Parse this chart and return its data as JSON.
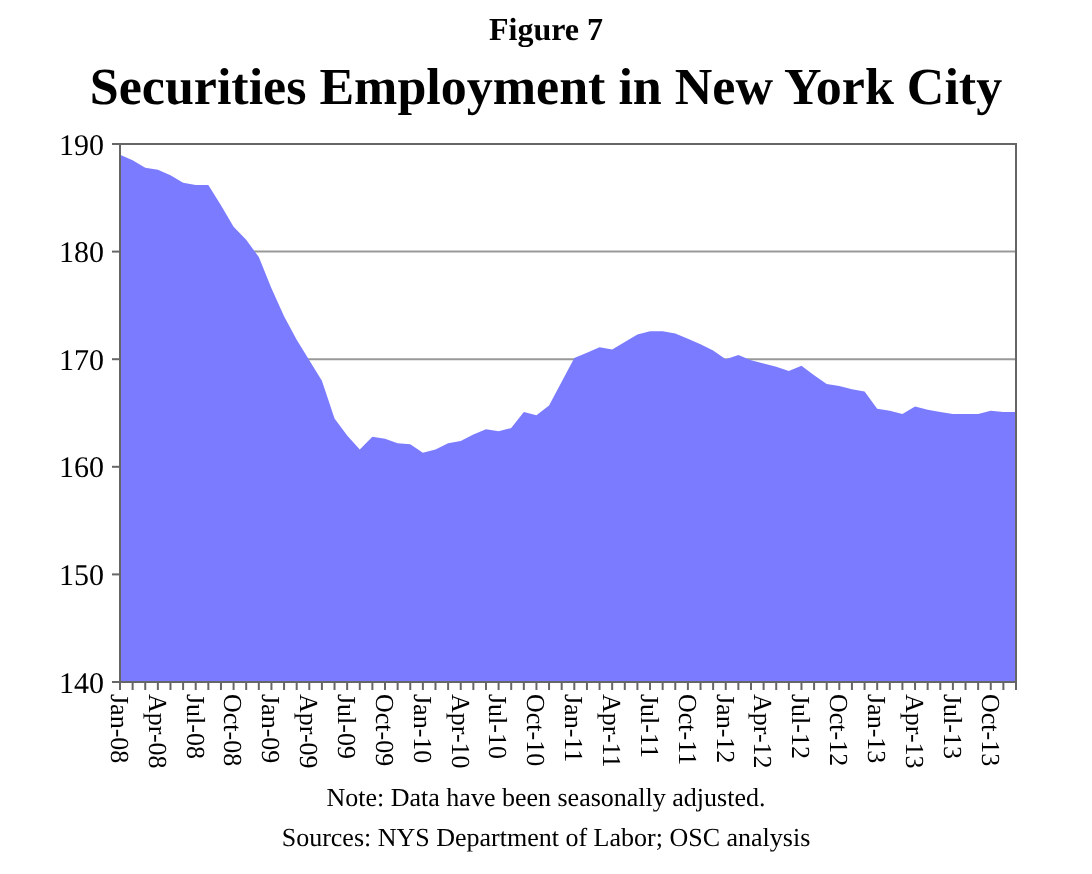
{
  "chart_data": {
    "type": "area",
    "title": "Figure 7",
    "subtitle": "Securities Employment in New York City",
    "categories": [
      "Jan-08",
      null,
      null,
      "Apr-08",
      null,
      null,
      "Jul-08",
      null,
      null,
      "Oct-08",
      null,
      null,
      "Jan-09",
      null,
      null,
      "Apr-09",
      null,
      null,
      "Jul-09",
      null,
      null,
      "Oct-09",
      null,
      null,
      "Jan-10",
      null,
      null,
      "Apr-10",
      null,
      null,
      "Jul-10",
      null,
      null,
      "Oct-10",
      null,
      null,
      "Jan-11",
      null,
      null,
      "Apr-11",
      null,
      null,
      "Jul-11",
      null,
      null,
      "Oct-11",
      null,
      null,
      "Jan-12",
      null,
      null,
      "Apr-12",
      null,
      null,
      "Jul-12",
      null,
      null,
      "Oct-12",
      null,
      null,
      "Jan-13",
      null,
      null,
      "Apr-13",
      null,
      null,
      "Jul-13",
      null,
      null,
      "Oct-13",
      null,
      null
    ],
    "values": [
      189.0,
      188.5,
      187.8,
      187.6,
      187.1,
      186.4,
      186.2,
      186.2,
      184.3,
      182.3,
      181.1,
      179.5,
      176.6,
      174.0,
      171.8,
      169.9,
      168.0,
      164.5,
      162.9,
      161.6,
      162.8,
      162.6,
      162.2,
      162.1,
      161.3,
      161.6,
      162.2,
      162.4,
      163.0,
      163.5,
      163.3,
      163.6,
      165.1,
      164.8,
      165.7,
      167.9,
      170.1,
      170.6,
      171.1,
      170.9,
      171.6,
      172.3,
      172.6,
      172.6,
      172.4,
      171.9,
      171.4,
      170.8,
      170.0,
      170.4,
      169.9,
      169.6,
      169.3,
      168.9,
      169.4,
      168.5,
      167.7,
      167.5,
      167.2,
      167.0,
      165.4,
      165.2,
      164.9,
      165.6,
      165.3,
      165.1,
      164.9,
      164.9,
      164.9,
      165.2,
      165.1,
      165.1
    ],
    "color": "#7b7bff",
    "ylim": [
      140,
      190
    ],
    "yticks": [
      140,
      150,
      160,
      170,
      180,
      190
    ],
    "grid": "y",
    "annotations": [
      "Note: Data have been seasonally adjusted.",
      "Sources: NYS Department of Labor; OSC analysis"
    ]
  }
}
